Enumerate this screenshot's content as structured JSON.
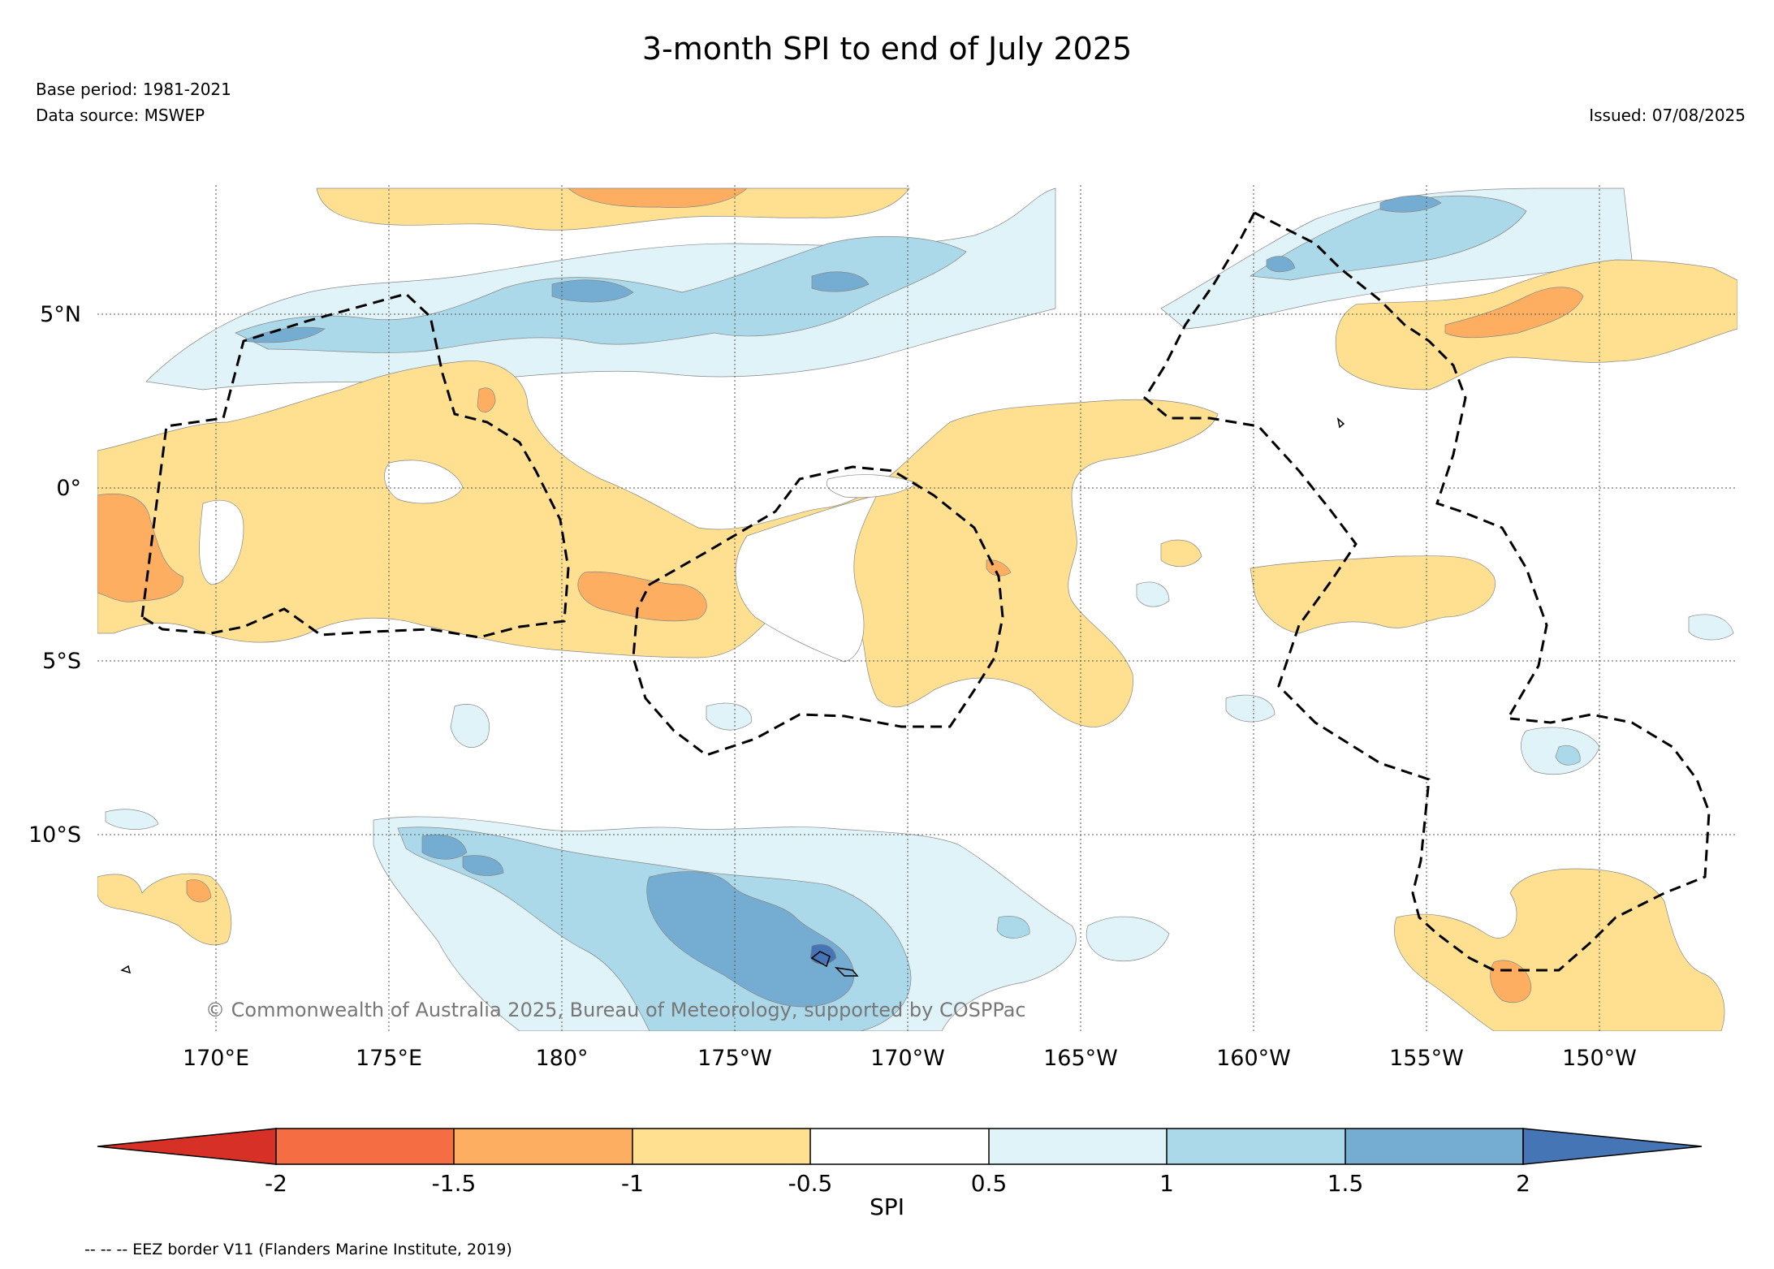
{
  "title": "3-month SPI to end of July 2025",
  "base_period": "Base period: 1981-2021",
  "data_source": "Data source: MSWEP",
  "issued": "Issued: 07/08/2025",
  "copyright": "© Commonwealth of Australia 2025, Bureau of Meteorology, supported by COSPPac",
  "map": {
    "lat_labels": [
      "5°N",
      "0°",
      "5°S",
      "10°S"
    ],
    "lon_labels": [
      "170°E",
      "175°E",
      "180°",
      "175°W",
      "170°W",
      "165°W",
      "160°W",
      "155°W",
      "150°W"
    ]
  },
  "colorbar": {
    "title": "SPI",
    "ticks": [
      "-2",
      "-1.5",
      "-1",
      "-0.5",
      "0.5",
      "1",
      "1.5",
      "2"
    ],
    "colors": {
      "below_-2": "#d73027",
      "-2_-1.5": "#f46d43",
      "-1.5_-1": "#fdae61",
      "-1_-0.5": "#fee090",
      "-0.5_0.5": "#ffffff",
      "0.5_1": "#e0f3f8",
      "1_1.5": "#abd9e9",
      "1.5_2": "#74add1",
      "above_2": "#4575b4"
    }
  },
  "legend_note": "-- -- -- EEZ border V11 (Flanders Marine Institute, 2019)"
}
